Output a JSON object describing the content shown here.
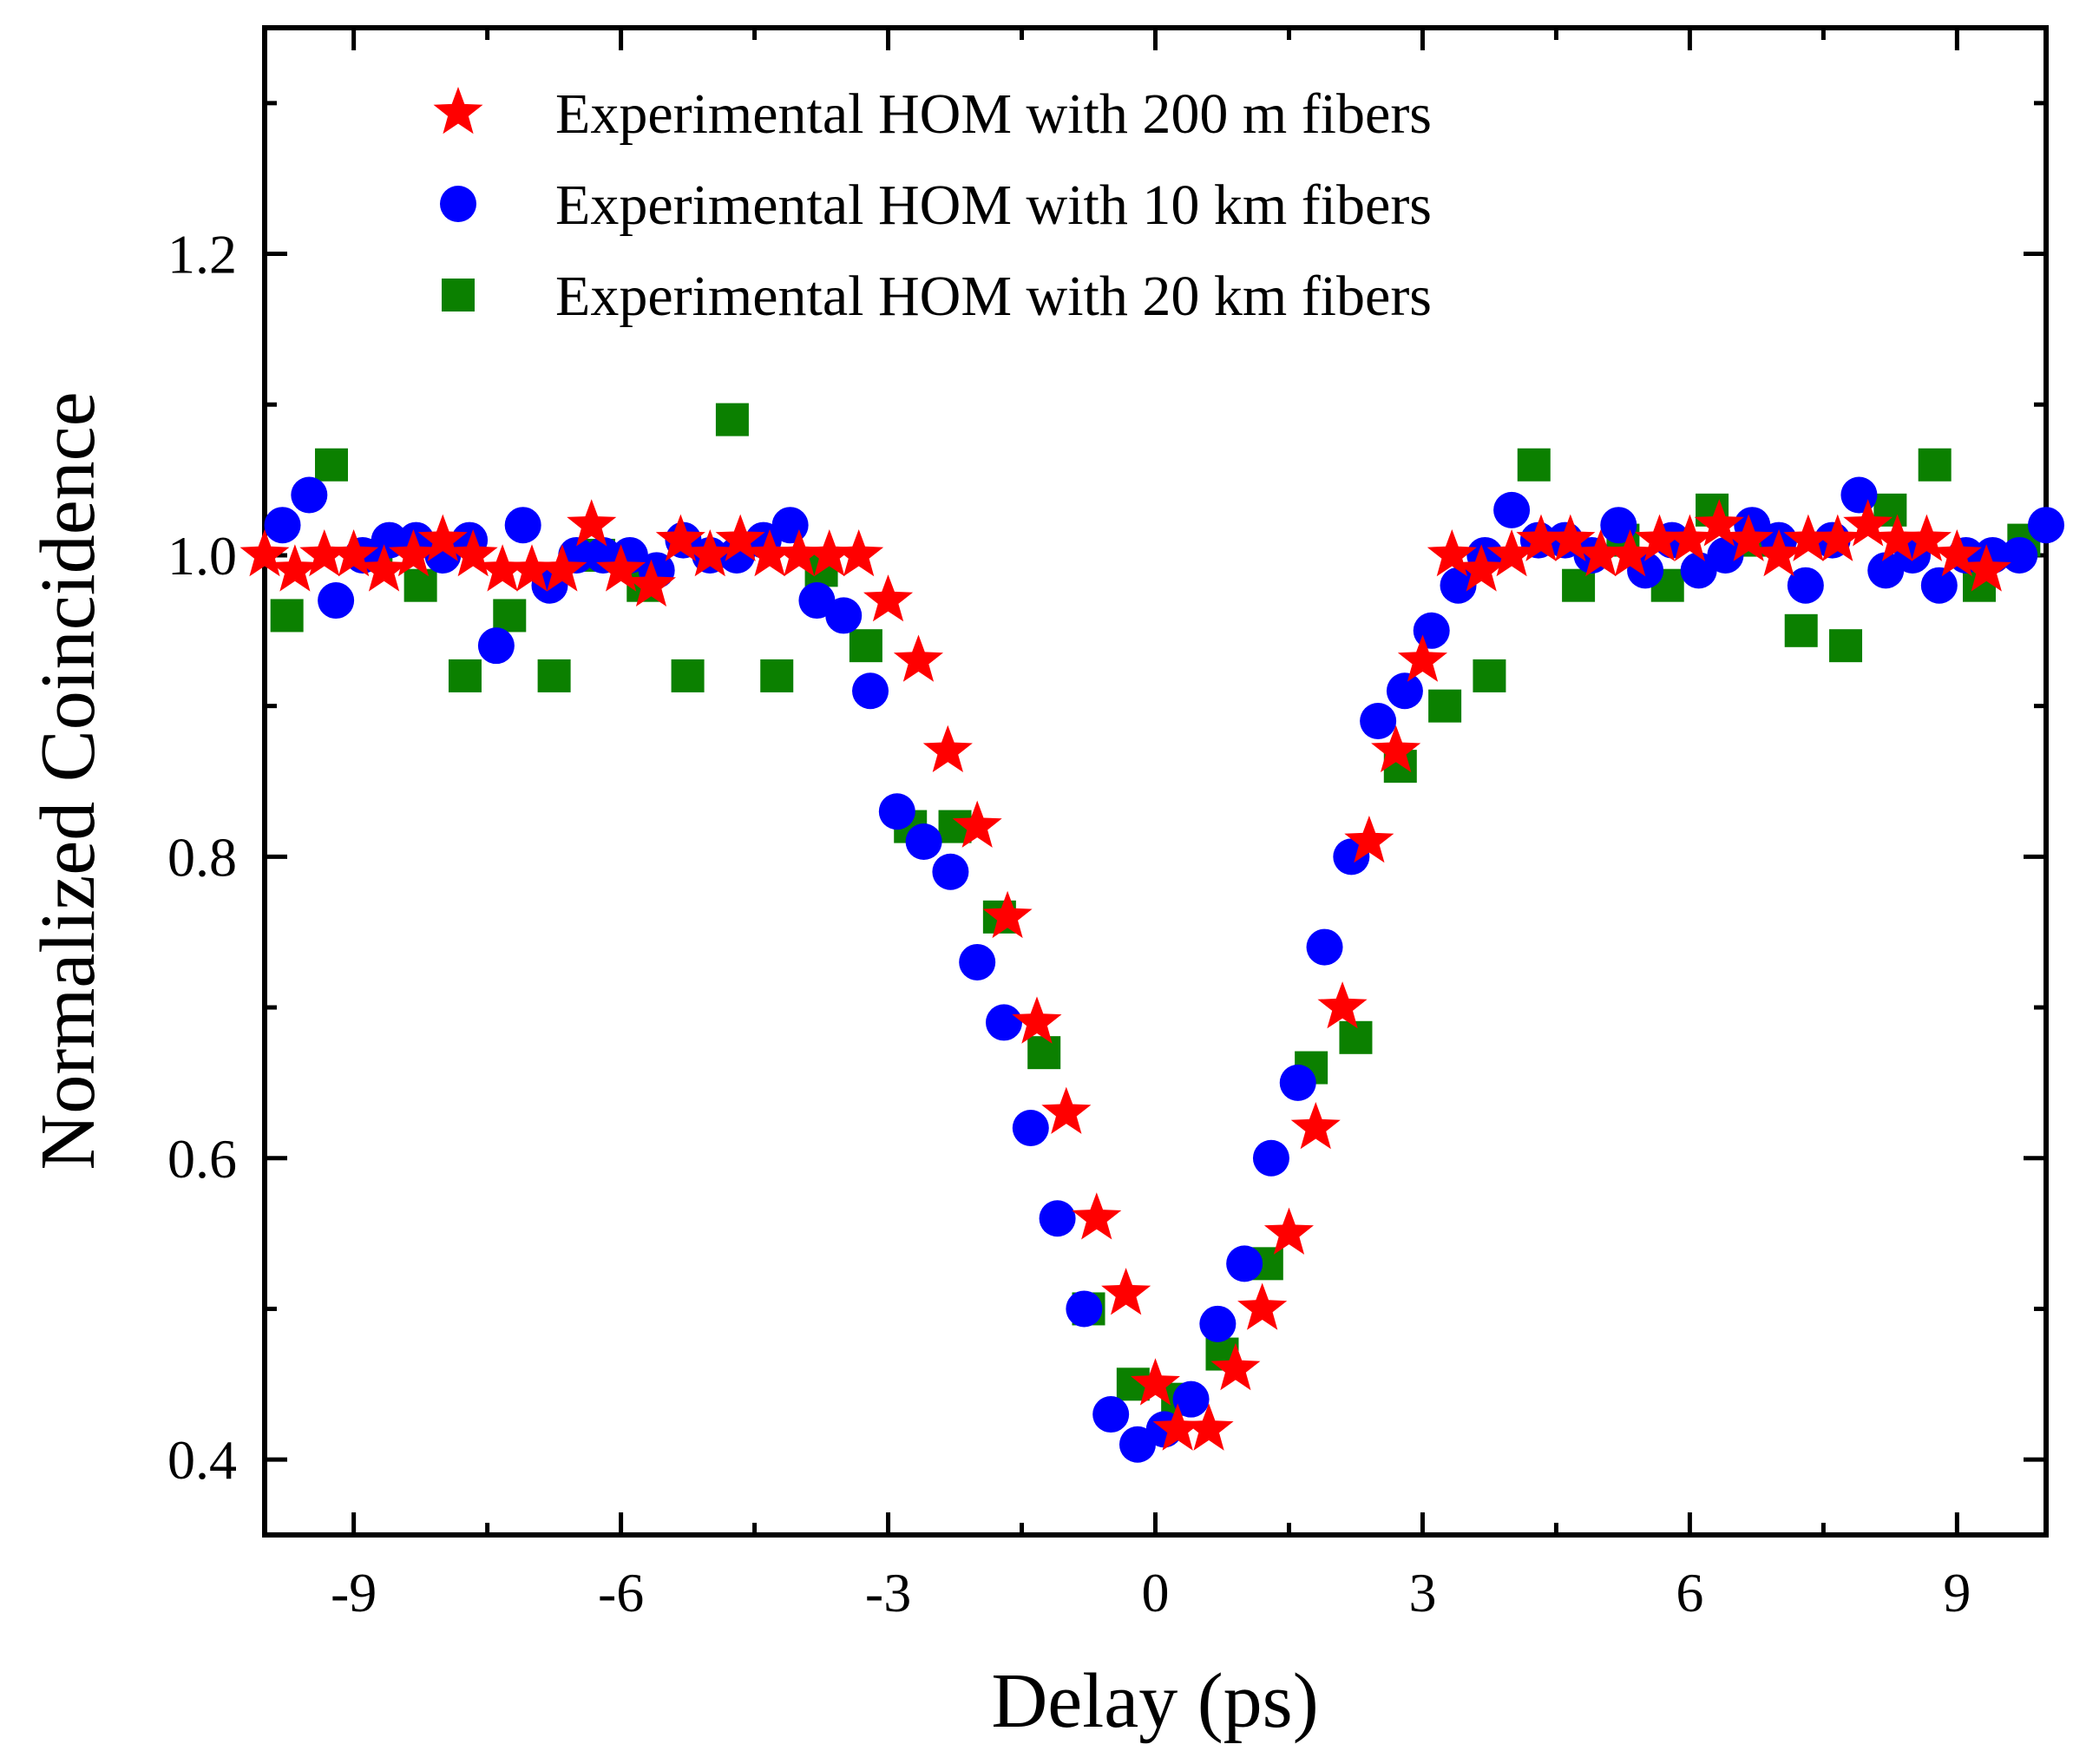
{
  "chart_data": {
    "type": "scatter",
    "title": "",
    "xlabel": "Delay (ps)",
    "ylabel": "Normalized Coincidence",
    "xlim": [
      -10,
      10
    ],
    "ylim": [
      0.35,
      1.35
    ],
    "xticks": [
      -9,
      -6,
      -3,
      0,
      3,
      6,
      9
    ],
    "xtick_labels": [
      "-9",
      "-6",
      "-3",
      "0",
      "3",
      "6",
      "9"
    ],
    "yticks": [
      0.4,
      0.6,
      0.8,
      1.0,
      1.2
    ],
    "ytick_labels": [
      "0.4",
      "0.6",
      "0.8",
      "1.0",
      "1.2"
    ],
    "grid": false,
    "legend_position": "top",
    "series": [
      {
        "name": "Experimental HOM with 200 m fibers",
        "marker": "star",
        "color": "#ff0000",
        "x": [
          -10.0,
          -9.66,
          -9.33,
          -9.0,
          -8.66,
          -8.33,
          -8.0,
          -7.66,
          -7.33,
          -7.0,
          -6.66,
          -6.33,
          -6.0,
          -5.66,
          -5.33,
          -5.0,
          -4.66,
          -4.33,
          -4.0,
          -3.66,
          -3.33,
          -3.0,
          -2.66,
          -2.33,
          -2.0,
          -1.66,
          -1.33,
          -1.0,
          -0.66,
          -0.33,
          0.0,
          0.25,
          0.6,
          0.9,
          1.2,
          1.5,
          1.8,
          2.1,
          2.4,
          2.7,
          3.0,
          3.33,
          3.66,
          4.0,
          4.33,
          4.66,
          5.0,
          5.33,
          5.66,
          6.0,
          6.33,
          6.66,
          7.0,
          7.33,
          7.66,
          8.0,
          8.33,
          8.66,
          9.0,
          9.33
        ],
        "y": [
          1.0,
          0.99,
          1.0,
          1.0,
          0.99,
          1.0,
          1.01,
          1.0,
          0.99,
          0.99,
          0.99,
          1.02,
          0.99,
          0.98,
          1.01,
          1.0,
          1.01,
          1.0,
          1.0,
          1.0,
          1.0,
          0.97,
          0.93,
          0.87,
          0.82,
          0.76,
          0.69,
          0.63,
          0.56,
          0.51,
          0.45,
          0.42,
          0.42,
          0.46,
          0.5,
          0.55,
          0.62,
          0.7,
          0.81,
          0.87,
          0.93,
          1.0,
          0.99,
          1.0,
          1.01,
          1.01,
          1.0,
          1.0,
          1.01,
          1.01,
          1.02,
          1.01,
          1.0,
          1.01,
          1.01,
          1.02,
          1.01,
          1.01,
          1.0,
          0.99
        ]
      },
      {
        "name": "Experimental HOM with 10 km fibers",
        "marker": "circle",
        "color": "#0000ff",
        "x": [
          -9.8,
          -9.5,
          -9.2,
          -8.9,
          -8.6,
          -8.3,
          -8.0,
          -7.7,
          -7.4,
          -7.1,
          -6.8,
          -6.5,
          -6.2,
          -5.9,
          -5.6,
          -5.3,
          -5.0,
          -4.7,
          -4.4,
          -4.1,
          -3.8,
          -3.5,
          -3.2,
          -2.9,
          -2.6,
          -2.3,
          -2.0,
          -1.7,
          -1.4,
          -1.1,
          -0.8,
          -0.5,
          -0.2,
          0.1,
          0.4,
          0.7,
          1.0,
          1.3,
          1.6,
          1.9,
          2.2,
          2.5,
          2.8,
          3.1,
          3.4,
          3.7,
          4.0,
          4.3,
          4.6,
          4.9,
          5.2,
          5.5,
          5.8,
          6.1,
          6.4,
          6.7,
          7.0,
          7.3,
          7.6,
          7.9,
          8.2,
          8.5,
          8.8,
          9.1,
          9.4,
          9.7,
          10.0
        ],
        "y": [
          1.02,
          1.04,
          0.97,
          1.0,
          1.01,
          1.01,
          1.0,
          1.01,
          0.94,
          1.02,
          0.98,
          1.0,
          1.0,
          1.0,
          0.99,
          1.01,
          1.0,
          1.0,
          1.01,
          1.02,
          0.97,
          0.96,
          0.91,
          0.83,
          0.81,
          0.79,
          0.73,
          0.69,
          0.62,
          0.56,
          0.5,
          0.43,
          0.41,
          0.42,
          0.44,
          0.49,
          0.53,
          0.6,
          0.65,
          0.74,
          0.8,
          0.89,
          0.91,
          0.95,
          0.98,
          1.0,
          1.03,
          1.01,
          1.01,
          1.0,
          1.02,
          0.99,
          1.01,
          0.99,
          1.0,
          1.02,
          1.01,
          0.98,
          1.01,
          1.04,
          0.99,
          1.0,
          0.98,
          1.0,
          1.0,
          1.0,
          1.02
        ]
      },
      {
        "name": "Experimental HOM with 20 km fibers",
        "marker": "square",
        "color": "#0b8000",
        "x": [
          -9.75,
          -9.25,
          -8.75,
          -8.25,
          -7.75,
          -7.25,
          -6.75,
          -6.25,
          -5.75,
          -5.25,
          -4.75,
          -4.25,
          -3.75,
          -3.25,
          -2.75,
          -2.25,
          -1.75,
          -1.25,
          -0.75,
          -0.25,
          0.25,
          0.75,
          1.25,
          1.75,
          2.25,
          2.75,
          3.25,
          3.75,
          4.25,
          4.75,
          5.25,
          5.75,
          6.25,
          6.75,
          7.25,
          7.75,
          8.25,
          8.75,
          9.25,
          9.75
        ],
        "y": [
          0.96,
          1.06,
          1.0,
          0.98,
          0.92,
          0.96,
          0.92,
          1.0,
          0.98,
          0.92,
          1.09,
          0.92,
          0.99,
          0.94,
          0.82,
          0.82,
          0.76,
          0.67,
          0.5,
          0.45,
          0.44,
          0.47,
          0.53,
          0.66,
          0.68,
          0.86,
          0.9,
          0.92,
          1.06,
          0.98,
          1.01,
          0.98,
          1.03,
          1.01,
          0.95,
          0.94,
          1.03,
          1.06,
          0.98,
          1.01
        ]
      }
    ]
  }
}
